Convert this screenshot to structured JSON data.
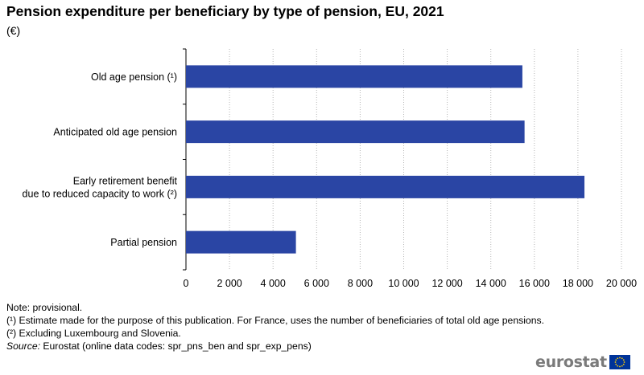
{
  "title": "Pension expenditure per beneficiary by type of pension, EU, 2021",
  "subtitle": "(€)",
  "chart_data": {
    "type": "bar",
    "orientation": "horizontal",
    "categories": [
      [
        "Old age pension (¹)"
      ],
      [
        "Anticipated old age pension"
      ],
      [
        "Early retirement benefit",
        "due to reduced capacity to work (²)"
      ],
      [
        "Partial pension"
      ]
    ],
    "values": [
      15450,
      15550,
      18300,
      5050
    ],
    "xlim": [
      0,
      20000
    ],
    "xticks": [
      0,
      2000,
      4000,
      6000,
      8000,
      10000,
      12000,
      14000,
      16000,
      18000,
      20000
    ],
    "xtick_labels": [
      "0",
      "2 000",
      "4 000",
      "6 000",
      "8 000",
      "10 000",
      "12 000",
      "14 000",
      "16 000",
      "18 000",
      "20 000"
    ],
    "bar_color": "#2a45a4",
    "grid": "vertical dotted",
    "legend": "none"
  },
  "notes": {
    "note": "Note: provisional.",
    "footnote1": "(¹) Estimate made for the purpose of this publication. For France, uses the number of beneficiaries of total old age pensions.",
    "footnote2": "(²) Excluding Luxembourg and Slovenia.",
    "source_label": "Source:",
    "source_text": " Eurostat (online data codes: spr_pns_ben and spr_exp_pens)"
  },
  "logo": {
    "text": "eurostat",
    "flag_icon": "eu-flag-icon"
  }
}
